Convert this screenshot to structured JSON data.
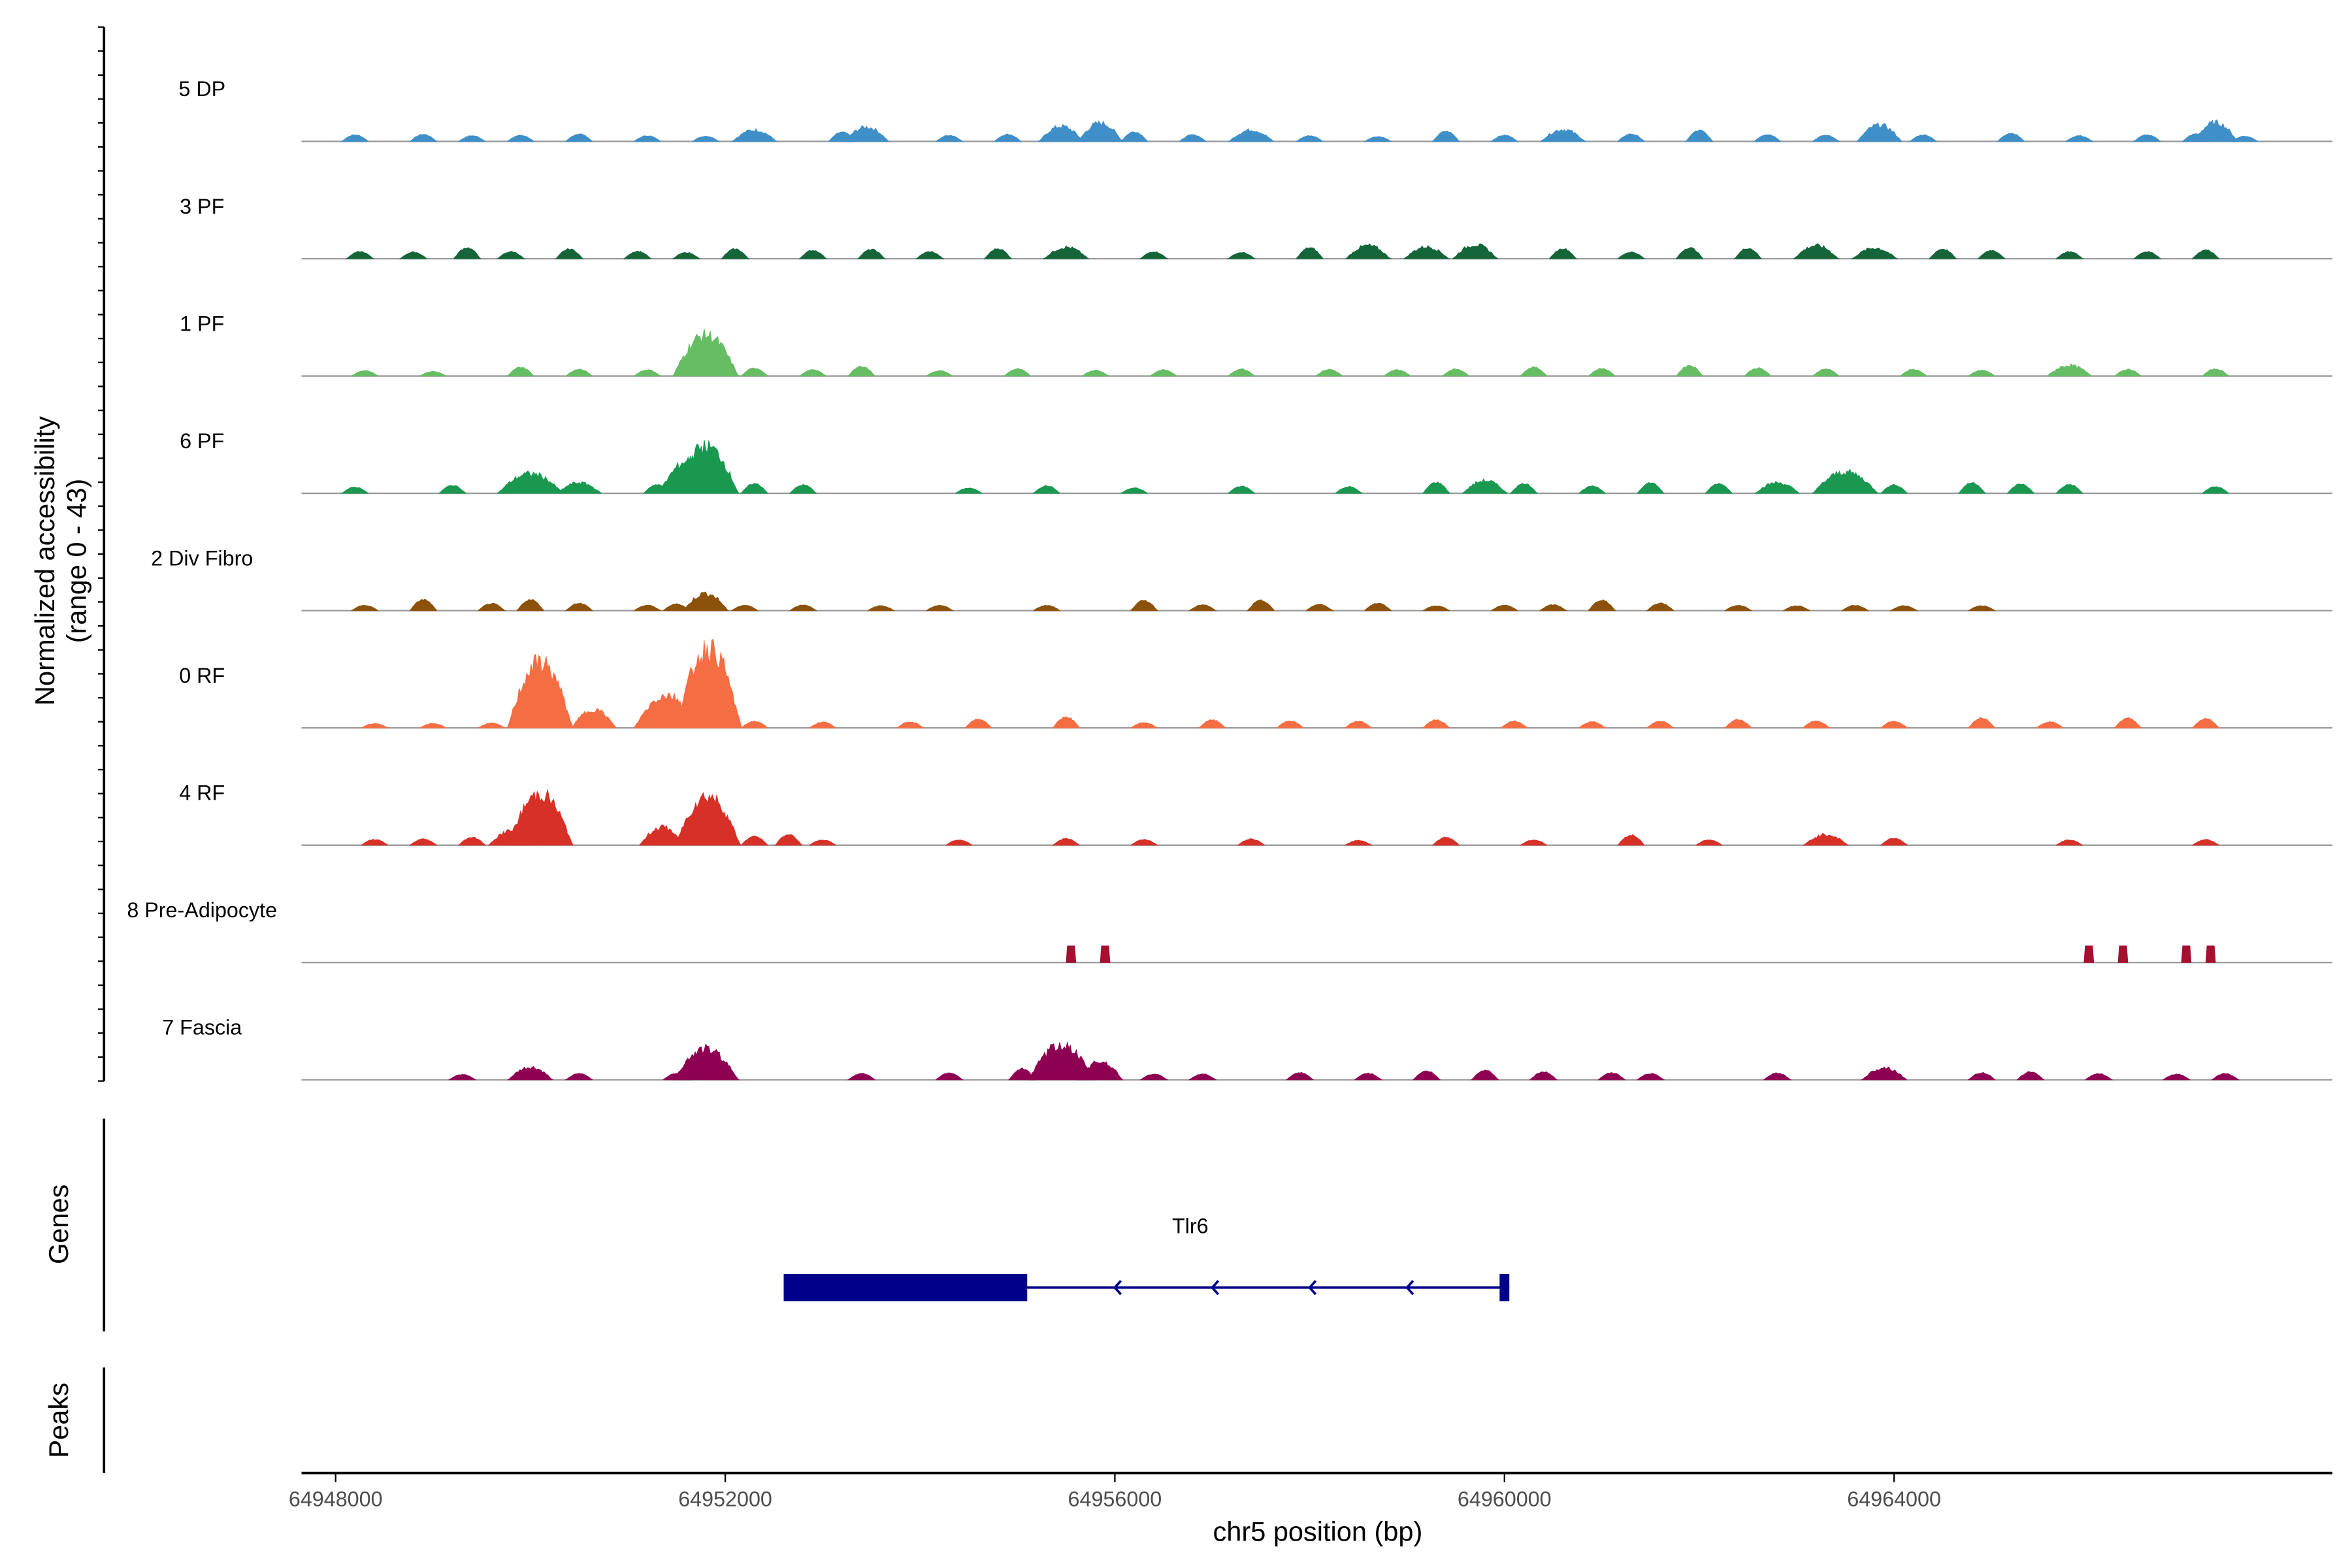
{
  "chart_data": {
    "type": "area",
    "title": "",
    "xlabel": "chr5 position (bp)",
    "ylabel_lines": [
      "Normalized accessibility",
      "(range 0 - 43)"
    ],
    "y_range": [
      0,
      43
    ],
    "x_range": [
      64947650,
      64968500
    ],
    "x_ticks": [
      64948000,
      64952000,
      64956000,
      64960000,
      64964000
    ],
    "x_tick_labels": [
      "64948000",
      "64952000",
      "64956000",
      "64960000",
      "64964000"
    ],
    "panel_labels": {
      "genes": "Genes",
      "peaks": "Peaks"
    },
    "tracks": [
      {
        "name": "5 DP",
        "color": "#3f8fc8",
        "peaks": [
          {
            "x": 64948200,
            "h": 1.5
          },
          {
            "x": 64948900,
            "h": 1.6
          },
          {
            "x": 64949400,
            "h": 1.3
          },
          {
            "x": 64949900,
            "h": 1.4
          },
          {
            "x": 64950500,
            "h": 1.7
          },
          {
            "x": 64951200,
            "h": 1.3
          },
          {
            "x": 64951800,
            "h": 1.2
          },
          {
            "x": 64952300,
            "h": 2.8
          },
          {
            "x": 64953200,
            "h": 2.1
          },
          {
            "x": 64953450,
            "h": 3.5
          },
          {
            "x": 64954300,
            "h": 1.4
          },
          {
            "x": 64954900,
            "h": 1.6
          },
          {
            "x": 64955450,
            "h": 3.7
          },
          {
            "x": 64955850,
            "h": 4.5
          },
          {
            "x": 64956200,
            "h": 2.2
          },
          {
            "x": 64956800,
            "h": 1.5
          },
          {
            "x": 64957400,
            "h": 2.8
          },
          {
            "x": 64958000,
            "h": 1.3
          },
          {
            "x": 64958700,
            "h": 1.1
          },
          {
            "x": 64959400,
            "h": 2.3
          },
          {
            "x": 64960000,
            "h": 1.4
          },
          {
            "x": 64960600,
            "h": 2.9
          },
          {
            "x": 64961300,
            "h": 1.7
          },
          {
            "x": 64962000,
            "h": 2.5
          },
          {
            "x": 64962700,
            "h": 1.6
          },
          {
            "x": 64963300,
            "h": 1.4
          },
          {
            "x": 64963850,
            "h": 4.0
          },
          {
            "x": 64964300,
            "h": 1.5
          },
          {
            "x": 64965200,
            "h": 1.9
          },
          {
            "x": 64965900,
            "h": 1.3
          },
          {
            "x": 64966600,
            "h": 1.5
          },
          {
            "x": 64967100,
            "h": 1.7
          },
          {
            "x": 64967300,
            "h": 4.6
          },
          {
            "x": 64967600,
            "h": 1.2
          }
        ]
      },
      {
        "name": "3 PF",
        "color": "#14653a",
        "peaks": [
          {
            "x": 64948250,
            "h": 1.6
          },
          {
            "x": 64948800,
            "h": 1.5
          },
          {
            "x": 64949350,
            "h": 2.5
          },
          {
            "x": 64949800,
            "h": 1.6
          },
          {
            "x": 64950400,
            "h": 2.2
          },
          {
            "x": 64951100,
            "h": 1.7
          },
          {
            "x": 64951600,
            "h": 1.4
          },
          {
            "x": 64952100,
            "h": 2.2
          },
          {
            "x": 64952900,
            "h": 1.9
          },
          {
            "x": 64953500,
            "h": 2.1
          },
          {
            "x": 64954100,
            "h": 1.6
          },
          {
            "x": 64954800,
            "h": 2.3
          },
          {
            "x": 64955500,
            "h": 2.8
          },
          {
            "x": 64956400,
            "h": 1.6
          },
          {
            "x": 64957300,
            "h": 1.4
          },
          {
            "x": 64958000,
            "h": 2.5
          },
          {
            "x": 64958600,
            "h": 3.2
          },
          {
            "x": 64959200,
            "h": 2.9
          },
          {
            "x": 64959700,
            "h": 3.4
          },
          {
            "x": 64960600,
            "h": 2.3
          },
          {
            "x": 64961300,
            "h": 1.5
          },
          {
            "x": 64961900,
            "h": 2.5
          },
          {
            "x": 64962500,
            "h": 2.4
          },
          {
            "x": 64963200,
            "h": 3.2
          },
          {
            "x": 64963800,
            "h": 2.6
          },
          {
            "x": 64964500,
            "h": 2.2
          },
          {
            "x": 64965000,
            "h": 1.9
          },
          {
            "x": 64965800,
            "h": 1.6
          },
          {
            "x": 64966600,
            "h": 1.6
          },
          {
            "x": 64967200,
            "h": 2.0
          }
        ]
      },
      {
        "name": "1 PF",
        "color": "#66bd63",
        "peaks": [
          {
            "x": 64948300,
            "h": 1.2
          },
          {
            "x": 64949000,
            "h": 1.0
          },
          {
            "x": 64949900,
            "h": 2.0
          },
          {
            "x": 64950500,
            "h": 1.5
          },
          {
            "x": 64951200,
            "h": 1.4
          },
          {
            "x": 64951800,
            "h": 10.0
          },
          {
            "x": 64952300,
            "h": 1.8
          },
          {
            "x": 64952900,
            "h": 1.4
          },
          {
            "x": 64953400,
            "h": 2.2
          },
          {
            "x": 64954200,
            "h": 1.2
          },
          {
            "x": 64955000,
            "h": 1.6
          },
          {
            "x": 64955800,
            "h": 1.3
          },
          {
            "x": 64956500,
            "h": 1.4
          },
          {
            "x": 64957300,
            "h": 1.6
          },
          {
            "x": 64958200,
            "h": 1.5
          },
          {
            "x": 64958900,
            "h": 1.4
          },
          {
            "x": 64959500,
            "h": 1.6
          },
          {
            "x": 64960300,
            "h": 2.0
          },
          {
            "x": 64961000,
            "h": 1.7
          },
          {
            "x": 64961900,
            "h": 2.4
          },
          {
            "x": 64962600,
            "h": 1.8
          },
          {
            "x": 64963300,
            "h": 1.6
          },
          {
            "x": 64964200,
            "h": 1.5
          },
          {
            "x": 64964900,
            "h": 1.3
          },
          {
            "x": 64965800,
            "h": 2.6
          },
          {
            "x": 64966400,
            "h": 1.5
          },
          {
            "x": 64967300,
            "h": 1.6
          }
        ]
      },
      {
        "name": "6 PF",
        "color": "#1a9850",
        "peaks": [
          {
            "x": 64948200,
            "h": 1.4
          },
          {
            "x": 64949200,
            "h": 1.8
          },
          {
            "x": 64950000,
            "h": 4.8
          },
          {
            "x": 64950500,
            "h": 2.6
          },
          {
            "x": 64951300,
            "h": 2.0
          },
          {
            "x": 64951650,
            "h": 8.2
          },
          {
            "x": 64951800,
            "h": 11.5
          },
          {
            "x": 64952300,
            "h": 2.2
          },
          {
            "x": 64952800,
            "h": 1.9
          },
          {
            "x": 64954500,
            "h": 1.2
          },
          {
            "x": 64955300,
            "h": 1.7
          },
          {
            "x": 64956200,
            "h": 1.2
          },
          {
            "x": 64957300,
            "h": 1.6
          },
          {
            "x": 64958400,
            "h": 1.5
          },
          {
            "x": 64959300,
            "h": 2.5
          },
          {
            "x": 64959800,
            "h": 3.1
          },
          {
            "x": 64960200,
            "h": 2.2
          },
          {
            "x": 64960900,
            "h": 1.6
          },
          {
            "x": 64961500,
            "h": 2.4
          },
          {
            "x": 64962200,
            "h": 2.2
          },
          {
            "x": 64962800,
            "h": 2.6
          },
          {
            "x": 64963500,
            "h": 5.2
          },
          {
            "x": 64964000,
            "h": 1.9
          },
          {
            "x": 64964800,
            "h": 2.4
          },
          {
            "x": 64965300,
            "h": 2.1
          },
          {
            "x": 64965800,
            "h": 2.0
          },
          {
            "x": 64967300,
            "h": 1.5
          }
        ]
      },
      {
        "name": "2 Div Fibro",
        "color": "#8c510a",
        "peaks": [
          {
            "x": 64948300,
            "h": 1.2
          },
          {
            "x": 64948900,
            "h": 2.5
          },
          {
            "x": 64949600,
            "h": 1.6
          },
          {
            "x": 64950000,
            "h": 2.5
          },
          {
            "x": 64950500,
            "h": 1.7
          },
          {
            "x": 64951200,
            "h": 1.2
          },
          {
            "x": 64951500,
            "h": 1.5
          },
          {
            "x": 64951800,
            "h": 4.2
          },
          {
            "x": 64952200,
            "h": 1.2
          },
          {
            "x": 64952800,
            "h": 1.3
          },
          {
            "x": 64953600,
            "h": 1.1
          },
          {
            "x": 64954200,
            "h": 1.2
          },
          {
            "x": 64955300,
            "h": 1.2
          },
          {
            "x": 64956300,
            "h": 2.3
          },
          {
            "x": 64956900,
            "h": 1.3
          },
          {
            "x": 64957500,
            "h": 2.3
          },
          {
            "x": 64958100,
            "h": 1.4
          },
          {
            "x": 64958700,
            "h": 1.7
          },
          {
            "x": 64959300,
            "h": 1.1
          },
          {
            "x": 64960000,
            "h": 1.2
          },
          {
            "x": 64960500,
            "h": 1.3
          },
          {
            "x": 64961000,
            "h": 2.4
          },
          {
            "x": 64961600,
            "h": 1.7
          },
          {
            "x": 64962400,
            "h": 1.2
          },
          {
            "x": 64963000,
            "h": 1.1
          },
          {
            "x": 64963600,
            "h": 1.2
          },
          {
            "x": 64964100,
            "h": 1.1
          },
          {
            "x": 64964900,
            "h": 1.1
          }
        ]
      },
      {
        "name": "0 RF",
        "color": "#f46d43",
        "peaks": [
          {
            "x": 64948400,
            "h": 1.0
          },
          {
            "x": 64949000,
            "h": 1.0
          },
          {
            "x": 64949600,
            "h": 1.1
          },
          {
            "x": 64950100,
            "h": 16.0
          },
          {
            "x": 64950650,
            "h": 4.5
          },
          {
            "x": 64951400,
            "h": 8.0
          },
          {
            "x": 64951830,
            "h": 19.5
          },
          {
            "x": 64952300,
            "h": 1.5
          },
          {
            "x": 64953000,
            "h": 1.3
          },
          {
            "x": 64953900,
            "h": 1.4
          },
          {
            "x": 64954600,
            "h": 2.0
          },
          {
            "x": 64955500,
            "h": 2.5
          },
          {
            "x": 64956300,
            "h": 1.2
          },
          {
            "x": 64957000,
            "h": 1.8
          },
          {
            "x": 64957800,
            "h": 1.6
          },
          {
            "x": 64958500,
            "h": 1.5
          },
          {
            "x": 64959300,
            "h": 1.8
          },
          {
            "x": 64960100,
            "h": 1.5
          },
          {
            "x": 64960900,
            "h": 1.4
          },
          {
            "x": 64961600,
            "h": 1.5
          },
          {
            "x": 64962400,
            "h": 1.9
          },
          {
            "x": 64963200,
            "h": 1.6
          },
          {
            "x": 64964000,
            "h": 1.5
          },
          {
            "x": 64964900,
            "h": 2.3
          },
          {
            "x": 64965600,
            "h": 1.4
          },
          {
            "x": 64966400,
            "h": 2.2
          },
          {
            "x": 64967200,
            "h": 2.1
          }
        ]
      },
      {
        "name": "4 RF",
        "color": "#d73027",
        "peaks": [
          {
            "x": 64948400,
            "h": 1.3
          },
          {
            "x": 64948900,
            "h": 1.4
          },
          {
            "x": 64949400,
            "h": 1.8
          },
          {
            "x": 64949800,
            "h": 3.5
          },
          {
            "x": 64950100,
            "h": 12.5
          },
          {
            "x": 64951350,
            "h": 4.4
          },
          {
            "x": 64951820,
            "h": 12.0
          },
          {
            "x": 64952300,
            "h": 2.0
          },
          {
            "x": 64952650,
            "h": 2.4
          },
          {
            "x": 64953000,
            "h": 1.2
          },
          {
            "x": 64954400,
            "h": 1.2
          },
          {
            "x": 64955500,
            "h": 1.5
          },
          {
            "x": 64956300,
            "h": 1.3
          },
          {
            "x": 64957400,
            "h": 1.4
          },
          {
            "x": 64958500,
            "h": 1.1
          },
          {
            "x": 64959400,
            "h": 1.8
          },
          {
            "x": 64960300,
            "h": 1.2
          },
          {
            "x": 64961300,
            "h": 2.3
          },
          {
            "x": 64962100,
            "h": 1.2
          },
          {
            "x": 64963300,
            "h": 2.6
          },
          {
            "x": 64964000,
            "h": 1.6
          },
          {
            "x": 64965800,
            "h": 1.2
          },
          {
            "x": 64967200,
            "h": 1.3
          }
        ]
      },
      {
        "name": "8 Pre-Adipocyte",
        "color": "#a50f30",
        "peaks": [
          {
            "x": 64955550,
            "h": 3.5
          },
          {
            "x": 64955900,
            "h": 3.5
          },
          {
            "x": 64966000,
            "h": 3.5
          },
          {
            "x": 64966350,
            "h": 3.5
          },
          {
            "x": 64967000,
            "h": 3.5
          },
          {
            "x": 64967250,
            "h": 3.5
          }
        ]
      },
      {
        "name": "7 Fascia",
        "color": "#8e0152",
        "peaks": [
          {
            "x": 64949300,
            "h": 1.2
          },
          {
            "x": 64950000,
            "h": 3.0
          },
          {
            "x": 64950500,
            "h": 1.4
          },
          {
            "x": 64951500,
            "h": 1.5
          },
          {
            "x": 64951800,
            "h": 7.5
          },
          {
            "x": 64953400,
            "h": 1.4
          },
          {
            "x": 64954300,
            "h": 1.6
          },
          {
            "x": 64955050,
            "h": 2.5
          },
          {
            "x": 64955450,
            "h": 8.5
          },
          {
            "x": 64955850,
            "h": 4.5
          },
          {
            "x": 64956400,
            "h": 1.3
          },
          {
            "x": 64956900,
            "h": 1.3
          },
          {
            "x": 64957900,
            "h": 1.6
          },
          {
            "x": 64958600,
            "h": 1.5
          },
          {
            "x": 64959200,
            "h": 2.0
          },
          {
            "x": 64959800,
            "h": 2.2
          },
          {
            "x": 64960400,
            "h": 1.8
          },
          {
            "x": 64961100,
            "h": 1.6
          },
          {
            "x": 64961500,
            "h": 1.4
          },
          {
            "x": 64962800,
            "h": 1.5
          },
          {
            "x": 64963900,
            "h": 3.0
          },
          {
            "x": 64964900,
            "h": 1.6
          },
          {
            "x": 64965400,
            "h": 1.8
          },
          {
            "x": 64966100,
            "h": 1.4
          },
          {
            "x": 64966900,
            "h": 1.3
          },
          {
            "x": 64967400,
            "h": 1.4
          }
        ]
      }
    ],
    "genes": [
      {
        "name": "Tlr6",
        "color": "#00008b",
        "strand": "-",
        "start": 64952600,
        "end": 64960050,
        "exons": [
          [
            64952600,
            64955100
          ],
          [
            64959950,
            64960050
          ]
        ],
        "arrows": [
          64956000,
          64957000,
          64958000,
          64959000
        ]
      }
    ]
  }
}
